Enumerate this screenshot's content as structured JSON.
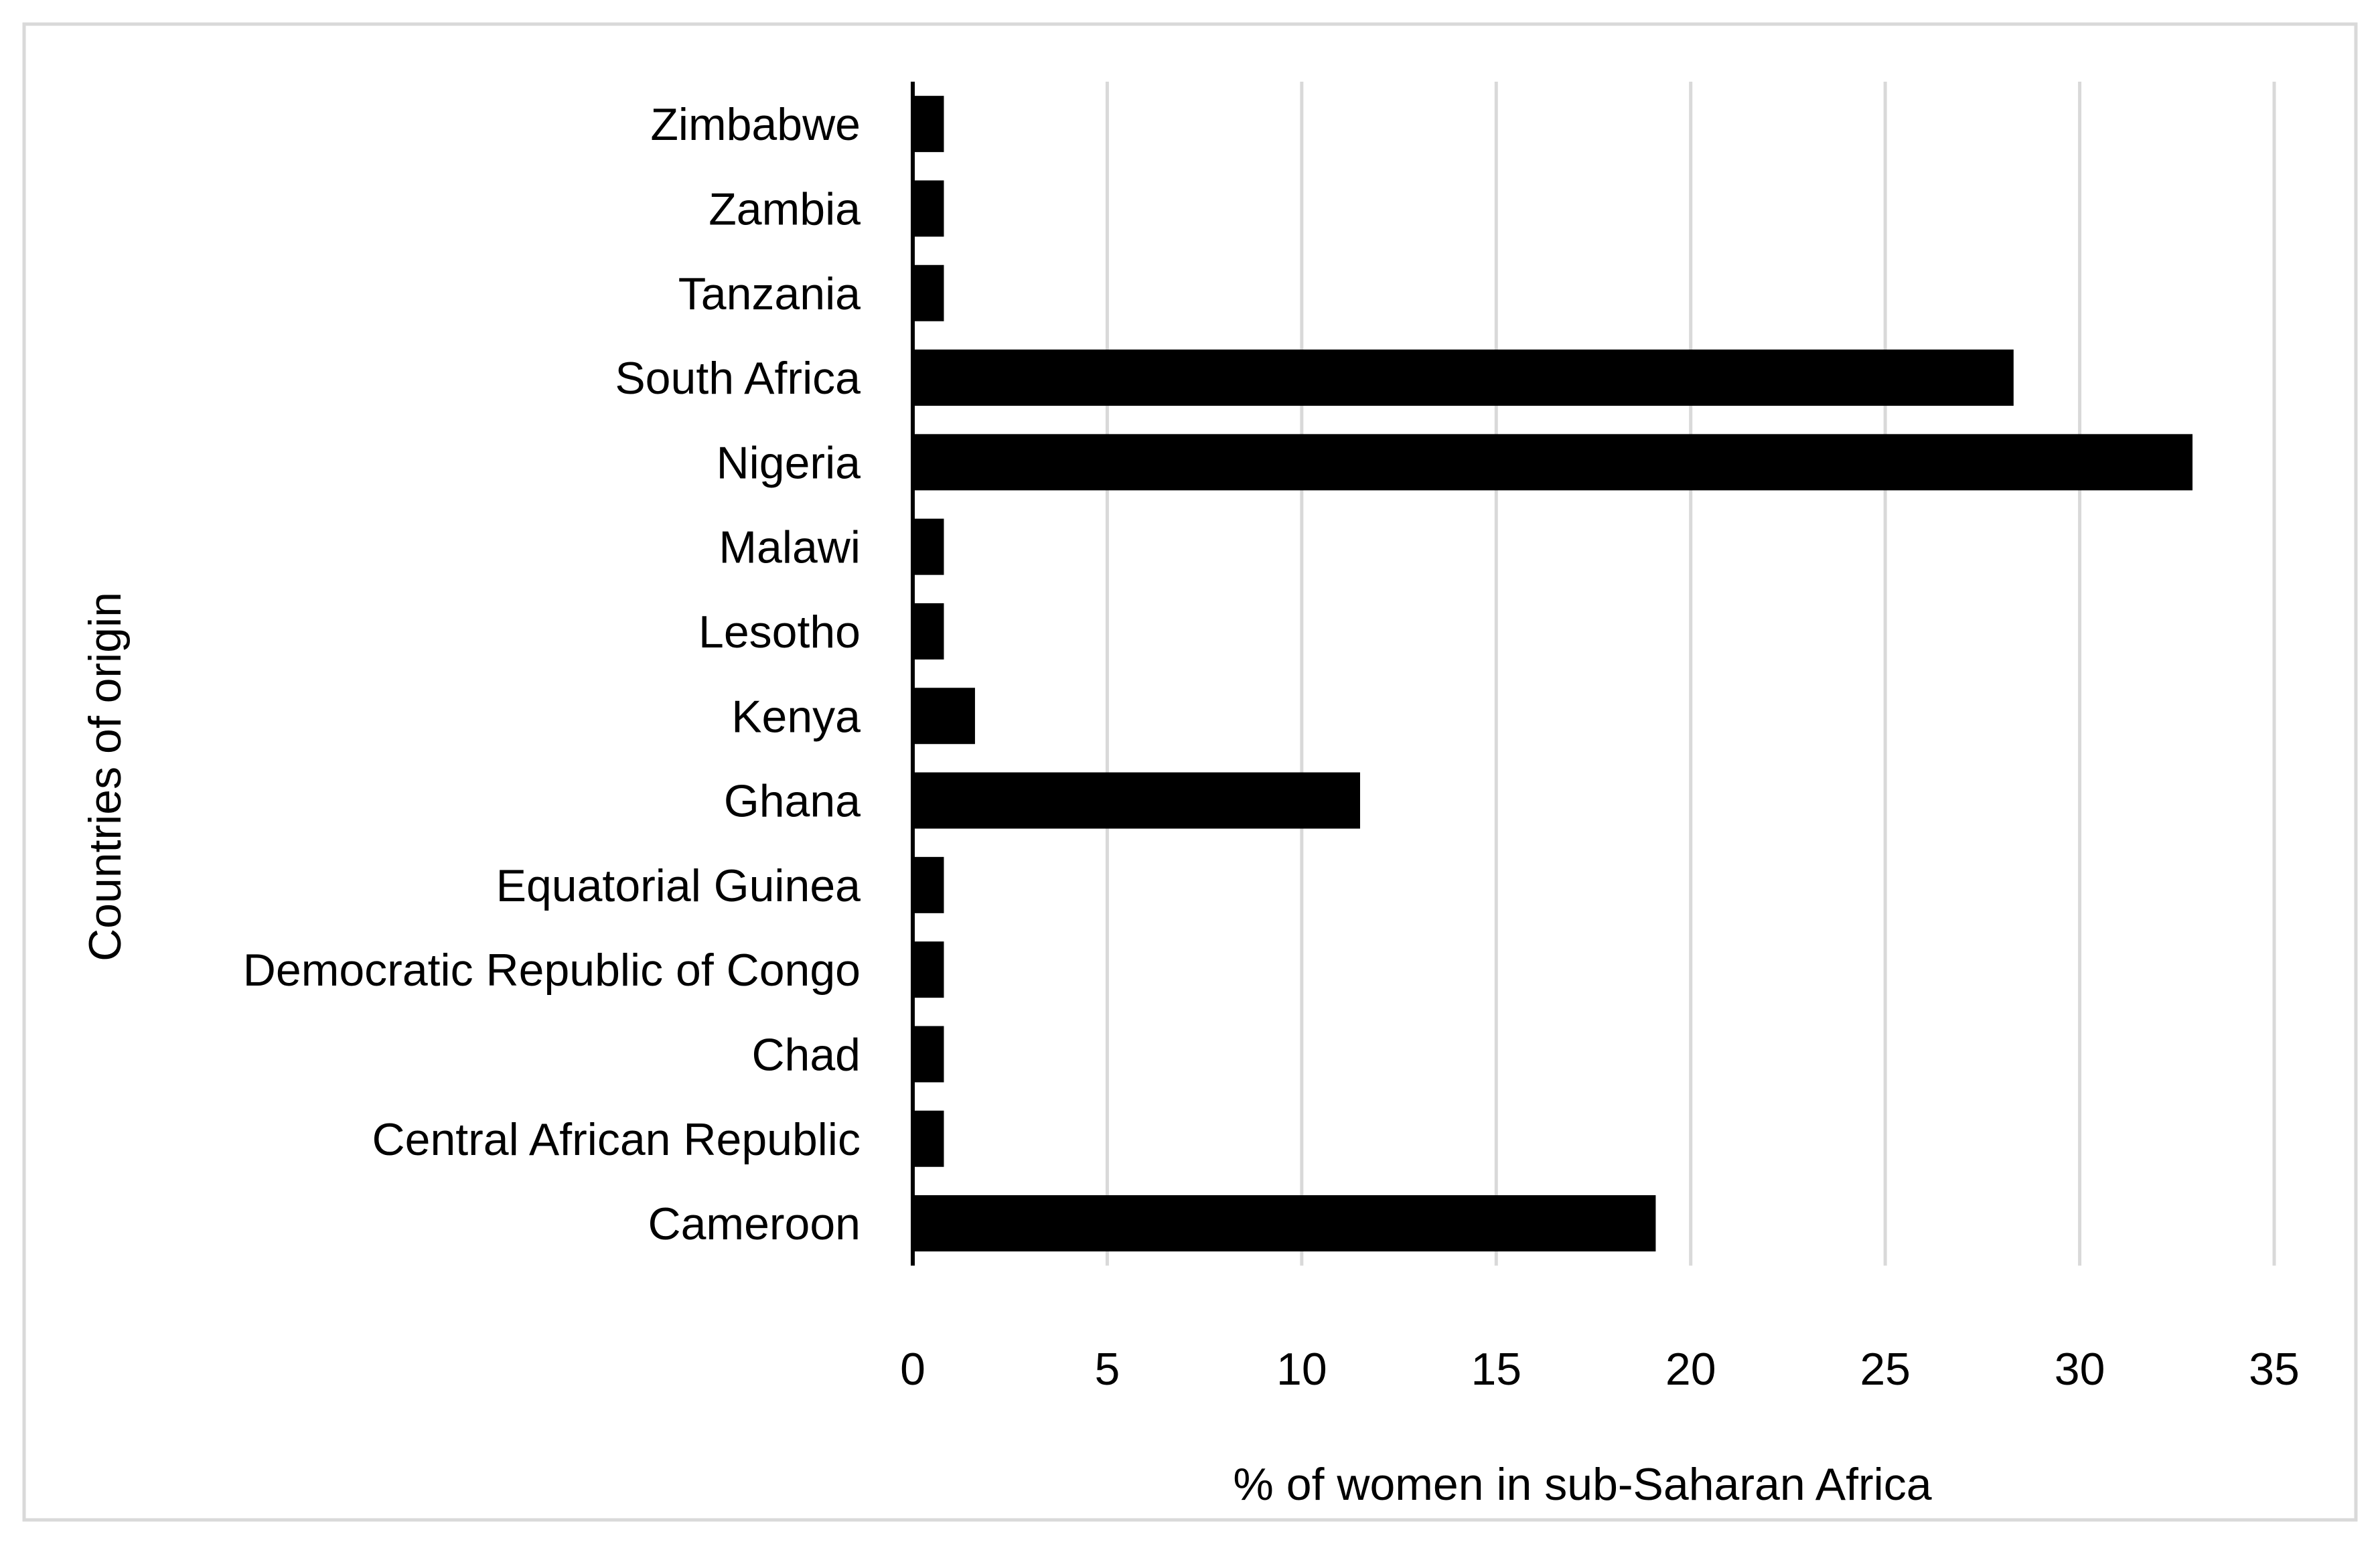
{
  "chart_data": {
    "type": "bar",
    "orientation": "horizontal",
    "categories": [
      "Zimbabwe",
      "Zambia",
      "Tanzania",
      "South Africa",
      "Nigeria",
      "Malawi",
      "Lesotho",
      "Kenya",
      "Ghana",
      "Equatorial Guinea",
      "Democratic Republic of Congo",
      "Chad",
      "Central African Republic",
      "Cameroon"
    ],
    "values": [
      0.8,
      0.8,
      0.8,
      28.3,
      32.9,
      0.8,
      0.8,
      1.6,
      11.5,
      0.8,
      0.8,
      0.8,
      0.8,
      19.1
    ],
    "xlabel": "% of women in sub-Saharan Africa",
    "ylabel": "Countries of origin",
    "xlim": [
      0,
      35
    ],
    "xticks": [
      0,
      5,
      10,
      15,
      20,
      25,
      30,
      35
    ],
    "xtick_labels": [
      "0",
      "5",
      "10",
      "15",
      "20",
      "25",
      "30",
      "35"
    ],
    "grid": "vertical",
    "legend": "none",
    "colors": {
      "bar": "#000000",
      "grid": "#d9d9d9",
      "frame": "#d9d9d9",
      "axis": "#000000"
    }
  }
}
